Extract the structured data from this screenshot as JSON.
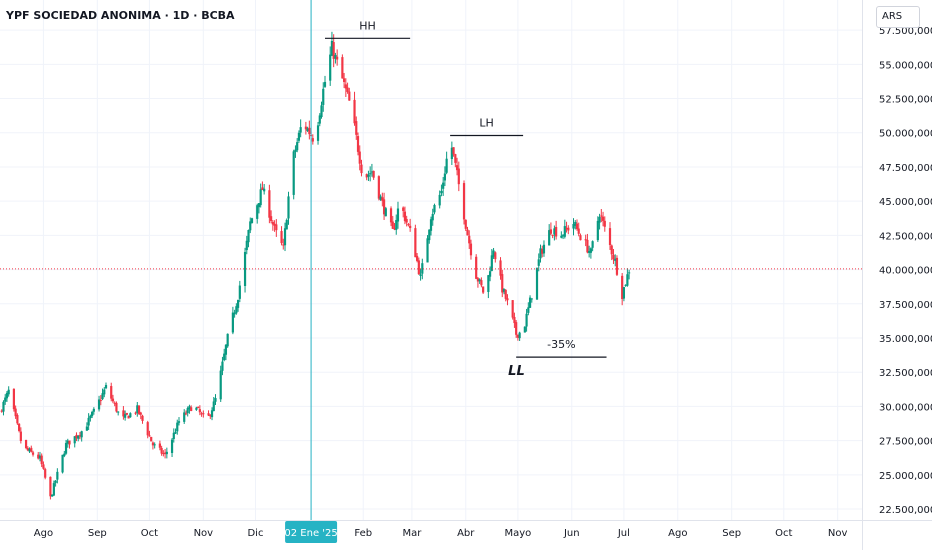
{
  "header": {
    "title": "YPF SOCIEDAD ANONIMA · 1D · BCBA",
    "currency": "ARS"
  },
  "chart_data": {
    "type": "candlestick",
    "symbol": "YPF SOCIEDAD ANONIMA",
    "interval": "1D",
    "exchange": "BCBA",
    "currency": "ARS",
    "y_tick_labels": [
      "22.500,000",
      "25.000,000",
      "27.500,000",
      "30.000,000",
      "32.500,000",
      "35.000,000",
      "37.500,000",
      "40.000,000",
      "42.500,000",
      "45.000,000",
      "47.500,000",
      "50.000,000",
      "52.500,000",
      "55.000,000",
      "57.500,000"
    ],
    "y_ticks": [
      22500,
      25000,
      27500,
      30000,
      32500,
      35000,
      37500,
      40000,
      42500,
      45000,
      47500,
      50000,
      52500,
      55000,
      57500
    ],
    "ylim": [
      21700,
      59700
    ],
    "x_tick_labels": [
      "Ago",
      "Sep",
      "Oct",
      "Nov",
      "Dic",
      "02 Ene '25",
      "Feb",
      "Mar",
      "Abr",
      "Mayo",
      "Jun",
      "Jul",
      "Ago",
      "Sep",
      "Oct",
      "Nov"
    ],
    "x_ticks": [
      "2024-08-01",
      "2024-09-01",
      "2024-10-01",
      "2024-11-01",
      "2024-12-01",
      "2025-01-02",
      "2025-02-01",
      "2025-03-01",
      "2025-04-01",
      "2025-05-01",
      "2025-06-01",
      "2025-07-01",
      "2025-08-01",
      "2025-09-01",
      "2025-10-01",
      "2025-11-01"
    ],
    "xlim": [
      "2024-07-07",
      "2025-11-15"
    ],
    "crosshair_date": "2025-01-02",
    "current_price_line": 40050,
    "colors": {
      "up": "#089981",
      "down": "#f23645",
      "crosshair": "#26b3c4",
      "price_line": "#f23645",
      "annotation": "#131722"
    },
    "annotations": [
      {
        "label": "HH",
        "level": 56900,
        "from": "2025-01-10",
        "to": "2025-02-28"
      },
      {
        "label": "LH",
        "level": 49800,
        "from": "2025-03-23",
        "to": "2025-05-04"
      },
      {
        "label": "-35%",
        "level": 33600,
        "from": "2025-04-30",
        "to": "2025-06-21"
      },
      {
        "label": "LL",
        "at": "2025-04-30"
      }
    ],
    "swing_points": [
      {
        "date": "2024-07-07",
        "close": 29600
      },
      {
        "date": "2024-07-12",
        "close": 31100
      },
      {
        "date": "2024-07-20",
        "close": 27000
      },
      {
        "date": "2024-07-30",
        "close": 26200
      },
      {
        "date": "2024-08-05",
        "close": 23300
      },
      {
        "date": "2024-08-14",
        "close": 27200
      },
      {
        "date": "2024-08-24",
        "close": 28300
      },
      {
        "date": "2024-08-30",
        "close": 29600
      },
      {
        "date": "2024-09-06",
        "close": 31400
      },
      {
        "date": "2024-09-15",
        "close": 29000
      },
      {
        "date": "2024-09-24",
        "close": 29800
      },
      {
        "date": "2024-10-03",
        "close": 27200
      },
      {
        "date": "2024-10-10",
        "close": 26400
      },
      {
        "date": "2024-10-18",
        "close": 28900
      },
      {
        "date": "2024-10-26",
        "close": 30100
      },
      {
        "date": "2024-11-03",
        "close": 28900
      },
      {
        "date": "2024-11-08",
        "close": 30500
      },
      {
        "date": "2024-11-15",
        "close": 35000
      },
      {
        "date": "2024-11-21",
        "close": 38100
      },
      {
        "date": "2024-11-28",
        "close": 43400
      },
      {
        "date": "2024-12-05",
        "close": 45900
      },
      {
        "date": "2024-12-12",
        "close": 42900
      },
      {
        "date": "2024-12-17",
        "close": 41500
      },
      {
        "date": "2024-12-22",
        "close": 47800
      },
      {
        "date": "2024-12-28",
        "close": 50800
      },
      {
        "date": "2025-01-04",
        "close": 49500
      },
      {
        "date": "2025-01-09",
        "close": 53100
      },
      {
        "date": "2025-01-14",
        "close": 56200
      },
      {
        "date": "2025-01-19",
        "close": 54300
      },
      {
        "date": "2025-01-25",
        "close": 51800
      },
      {
        "date": "2025-02-01",
        "close": 46700
      },
      {
        "date": "2025-02-06",
        "close": 47200
      },
      {
        "date": "2025-02-12",
        "close": 44800
      },
      {
        "date": "2025-02-18",
        "close": 42700
      },
      {
        "date": "2025-02-22",
        "close": 44900
      },
      {
        "date": "2025-03-01",
        "close": 42400
      },
      {
        "date": "2025-03-06",
        "close": 39400
      },
      {
        "date": "2025-03-12",
        "close": 44000
      },
      {
        "date": "2025-03-18",
        "close": 45700
      },
      {
        "date": "2025-03-23",
        "close": 49600
      },
      {
        "date": "2025-03-28",
        "close": 46200
      },
      {
        "date": "2025-04-02",
        "close": 42600
      },
      {
        "date": "2025-04-07",
        "close": 39600
      },
      {
        "date": "2025-04-12",
        "close": 38100
      },
      {
        "date": "2025-04-17",
        "close": 41600
      },
      {
        "date": "2025-04-22",
        "close": 38600
      },
      {
        "date": "2025-04-26",
        "close": 37200
      },
      {
        "date": "2025-04-30",
        "close": 35300
      },
      {
        "date": "2025-05-04",
        "close": 35500
      },
      {
        "date": "2025-05-09",
        "close": 38200
      },
      {
        "date": "2025-05-14",
        "close": 41200
      },
      {
        "date": "2025-05-20",
        "close": 43000
      },
      {
        "date": "2025-05-26",
        "close": 42600
      },
      {
        "date": "2025-06-02",
        "close": 43400
      },
      {
        "date": "2025-06-08",
        "close": 42000
      },
      {
        "date": "2025-06-12",
        "close": 41200
      },
      {
        "date": "2025-06-17",
        "close": 44200
      },
      {
        "date": "2025-06-22",
        "close": 42100
      },
      {
        "date": "2025-06-26",
        "close": 40600
      },
      {
        "date": "2025-06-30",
        "close": 38200
      },
      {
        "date": "2025-07-04",
        "close": 40000
      }
    ]
  }
}
